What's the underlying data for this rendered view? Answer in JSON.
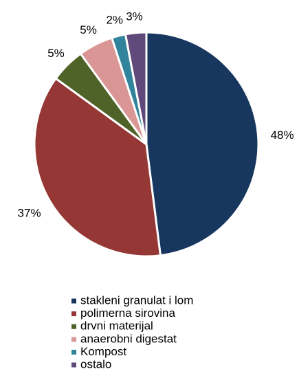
{
  "chart_data": {
    "type": "pie",
    "categories": [
      "stakleni granulat i lom",
      "polimerna sirovina",
      "drvni materijal",
      "anaerobni digestat",
      "Kompost",
      "ostalo"
    ],
    "values": [
      48,
      37,
      5,
      5,
      2,
      3
    ],
    "value_labels": [
      "48%",
      "37%",
      "5%",
      "5%",
      "2%",
      "3%"
    ],
    "colors": [
      "#17375e",
      "#953735",
      "#4f6228",
      "#d99694",
      "#31849b",
      "#604a7b"
    ],
    "legend": "bottom"
  }
}
